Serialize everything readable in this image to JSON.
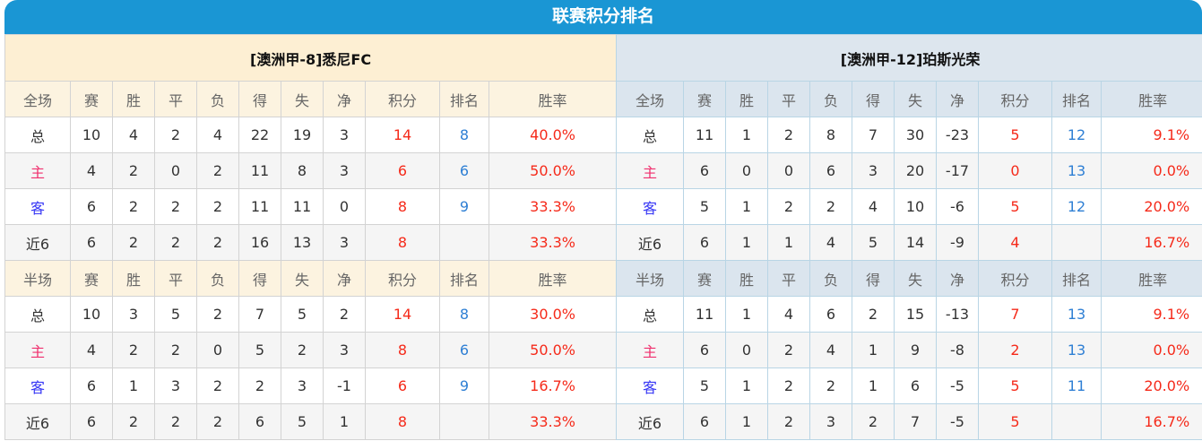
{
  "title": "联赛积分排名",
  "colors": {
    "title_bar": "#1a96d4",
    "points": "#f52a1a",
    "rank": "#2e7fd4",
    "home": "#f0306e",
    "away": "#3434f5"
  },
  "headers_full": [
    "全场",
    "赛",
    "胜",
    "平",
    "负",
    "得",
    "失",
    "净",
    "积分",
    "排名",
    "胜率"
  ],
  "headers_half": [
    "半场",
    "赛",
    "胜",
    "平",
    "负",
    "得",
    "失",
    "净",
    "积分",
    "排名",
    "胜率"
  ],
  "teams": [
    {
      "name": "[澳洲甲-8]悉尼FC",
      "full": [
        [
          "总",
          "10",
          "4",
          "2",
          "4",
          "22",
          "19",
          "3",
          "14",
          "8",
          "40.0%"
        ],
        [
          "主",
          "4",
          "2",
          "0",
          "2",
          "11",
          "8",
          "3",
          "6",
          "6",
          "50.0%"
        ],
        [
          "客",
          "6",
          "2",
          "2",
          "2",
          "11",
          "11",
          "0",
          "8",
          "9",
          "33.3%"
        ],
        [
          "近6",
          "6",
          "2",
          "2",
          "2",
          "16",
          "13",
          "3",
          "8",
          "",
          "33.3%"
        ]
      ],
      "half": [
        [
          "总",
          "10",
          "3",
          "5",
          "2",
          "7",
          "5",
          "2",
          "14",
          "8",
          "30.0%"
        ],
        [
          "主",
          "4",
          "2",
          "2",
          "0",
          "5",
          "2",
          "3",
          "8",
          "6",
          "50.0%"
        ],
        [
          "客",
          "6",
          "1",
          "3",
          "2",
          "2",
          "3",
          "-1",
          "6",
          "9",
          "16.7%"
        ],
        [
          "近6",
          "6",
          "2",
          "2",
          "2",
          "6",
          "5",
          "1",
          "8",
          "",
          "33.3%"
        ]
      ]
    },
    {
      "name": "[澳洲甲-12]珀斯光荣",
      "full": [
        [
          "总",
          "11",
          "1",
          "2",
          "8",
          "7",
          "30",
          "-23",
          "5",
          "12",
          "9.1%"
        ],
        [
          "主",
          "6",
          "0",
          "0",
          "6",
          "3",
          "20",
          "-17",
          "0",
          "13",
          "0.0%"
        ],
        [
          "客",
          "5",
          "1",
          "2",
          "2",
          "4",
          "10",
          "-6",
          "5",
          "12",
          "20.0%"
        ],
        [
          "近6",
          "6",
          "1",
          "1",
          "4",
          "5",
          "14",
          "-9",
          "4",
          "",
          "16.7%"
        ]
      ],
      "half": [
        [
          "总",
          "11",
          "1",
          "4",
          "6",
          "2",
          "15",
          "-13",
          "7",
          "13",
          "9.1%"
        ],
        [
          "主",
          "6",
          "0",
          "2",
          "4",
          "1",
          "9",
          "-8",
          "2",
          "13",
          "0.0%"
        ],
        [
          "客",
          "5",
          "1",
          "2",
          "2",
          "1",
          "6",
          "-5",
          "5",
          "11",
          "20.0%"
        ],
        [
          "近6",
          "6",
          "1",
          "2",
          "3",
          "2",
          "7",
          "-5",
          "5",
          "",
          "16.7%"
        ]
      ]
    }
  ]
}
